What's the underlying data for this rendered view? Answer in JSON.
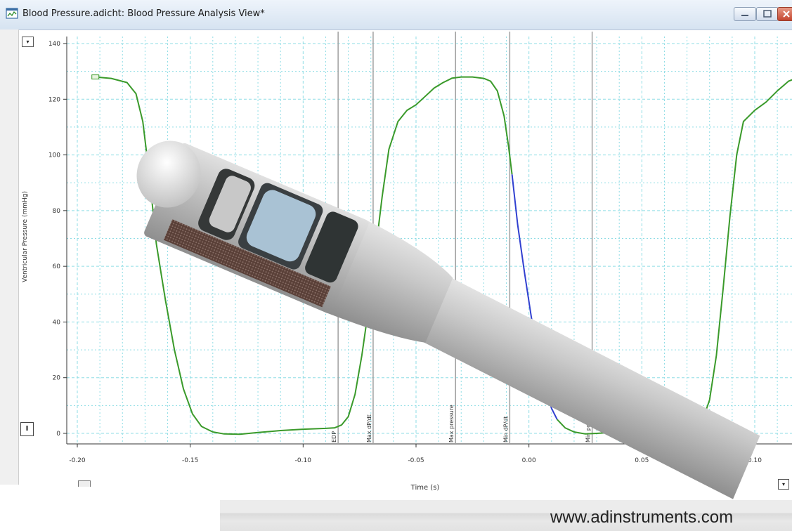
{
  "window": {
    "title": "Blood Pressure.adicht: Blood Pressure Analysis View*"
  },
  "controls": {
    "minimize_icon": "minimize-icon",
    "maximize_icon": "maximize-icon",
    "close_icon": "close-icon",
    "collapse_glyph": "▾",
    "scale_glyph": "I",
    "corner_glyph": "▾"
  },
  "chart_data": {
    "type": "line",
    "xlabel": "Time (s)",
    "ylabel": "Ventricular Pressure (mmHg)",
    "xlim": [
      -0.205,
      0.125
    ],
    "ylim": [
      -3,
      142
    ],
    "x_ticks": [
      -0.2,
      -0.15,
      -0.1,
      -0.05,
      0.0,
      0.05,
      0.1
    ],
    "x_tick_labels": [
      "-0.20",
      "-0.15",
      "-0.10",
      "-0.05",
      "0.00",
      "0.05",
      "0.10"
    ],
    "y_ticks": [
      0,
      20,
      40,
      60,
      80,
      100,
      120,
      140
    ],
    "y_tick_labels": [
      "0",
      "20",
      "40",
      "60",
      "80",
      "100",
      "120",
      "140"
    ],
    "grid": true,
    "colors": {
      "trace": "#3a9a2a",
      "highlight": "#3040d0",
      "grid": "#8fdde5",
      "marker": "#a0a0a0"
    },
    "series": [
      {
        "color": "#3a9a2a",
        "points": [
          [
            -0.192,
            128
          ],
          [
            -0.185,
            127.5
          ],
          [
            -0.178,
            126
          ],
          [
            -0.174,
            122
          ],
          [
            -0.171,
            112
          ],
          [
            -0.168,
            92
          ],
          [
            -0.165,
            68
          ],
          [
            -0.161,
            48
          ],
          [
            -0.157,
            30
          ],
          [
            -0.153,
            16
          ],
          [
            -0.149,
            7
          ],
          [
            -0.145,
            2.5
          ],
          [
            -0.14,
            0.5
          ],
          [
            -0.135,
            -0.2
          ],
          [
            -0.128,
            -0.3
          ],
          [
            -0.12,
            0.3
          ],
          [
            -0.11,
            1
          ],
          [
            -0.1,
            1.5
          ],
          [
            -0.09,
            1.8
          ],
          [
            -0.086,
            2
          ],
          [
            -0.083,
            3
          ],
          [
            -0.08,
            6
          ],
          [
            -0.077,
            14
          ],
          [
            -0.074,
            28
          ],
          [
            -0.071,
            45
          ],
          [
            -0.068,
            65
          ],
          [
            -0.065,
            85
          ],
          [
            -0.062,
            102
          ],
          [
            -0.058,
            112
          ],
          [
            -0.054,
            116
          ],
          [
            -0.05,
            118
          ],
          [
            -0.046,
            121
          ],
          [
            -0.042,
            124
          ],
          [
            -0.038,
            126
          ],
          [
            -0.034,
            127.6
          ],
          [
            -0.03,
            128
          ],
          [
            -0.025,
            128
          ],
          [
            -0.02,
            127.5
          ],
          [
            -0.017,
            126.5
          ],
          [
            -0.014,
            123
          ],
          [
            -0.011,
            114
          ],
          [
            -0.009,
            103
          ],
          [
            -0.0075,
            93
          ]
        ]
      },
      {
        "color": "#3040d0",
        "points": [
          [
            -0.0075,
            93
          ],
          [
            -0.005,
            75
          ],
          [
            -0.002,
            58
          ],
          [
            0.001,
            42
          ],
          [
            0.004,
            28
          ],
          [
            0.007,
            17
          ],
          [
            0.01,
            9
          ],
          [
            0.0125,
            5
          ]
        ]
      },
      {
        "color": "#3a9a2a",
        "points": [
          [
            0.0125,
            5
          ],
          [
            0.016,
            2
          ],
          [
            0.02,
            0.5
          ],
          [
            0.025,
            -0.2
          ],
          [
            0.03,
            0
          ],
          [
            0.04,
            0.5
          ],
          [
            0.05,
            1
          ],
          [
            0.06,
            1.5
          ],
          [
            0.07,
            2
          ],
          [
            0.074,
            2.5
          ],
          [
            0.077,
            5
          ],
          [
            0.08,
            12
          ],
          [
            0.083,
            28
          ],
          [
            0.086,
            52
          ],
          [
            0.089,
            78
          ],
          [
            0.092,
            100
          ],
          [
            0.095,
            112
          ],
          [
            0.1,
            116
          ],
          [
            0.105,
            119
          ],
          [
            0.11,
            123
          ],
          [
            0.115,
            126.5
          ],
          [
            0.12,
            128
          ]
        ]
      }
    ],
    "markers": [
      {
        "x": -0.0845,
        "label": "EDP"
      },
      {
        "x": -0.069,
        "label": "Max dP/dt"
      },
      {
        "x": -0.0325,
        "label": "Max pressure"
      },
      {
        "x": -0.0085,
        "label": "Min dP/dt"
      },
      {
        "x": 0.028,
        "label": "Min pressure"
      }
    ]
  },
  "footer": {
    "url": "www.adinstruments.com"
  }
}
